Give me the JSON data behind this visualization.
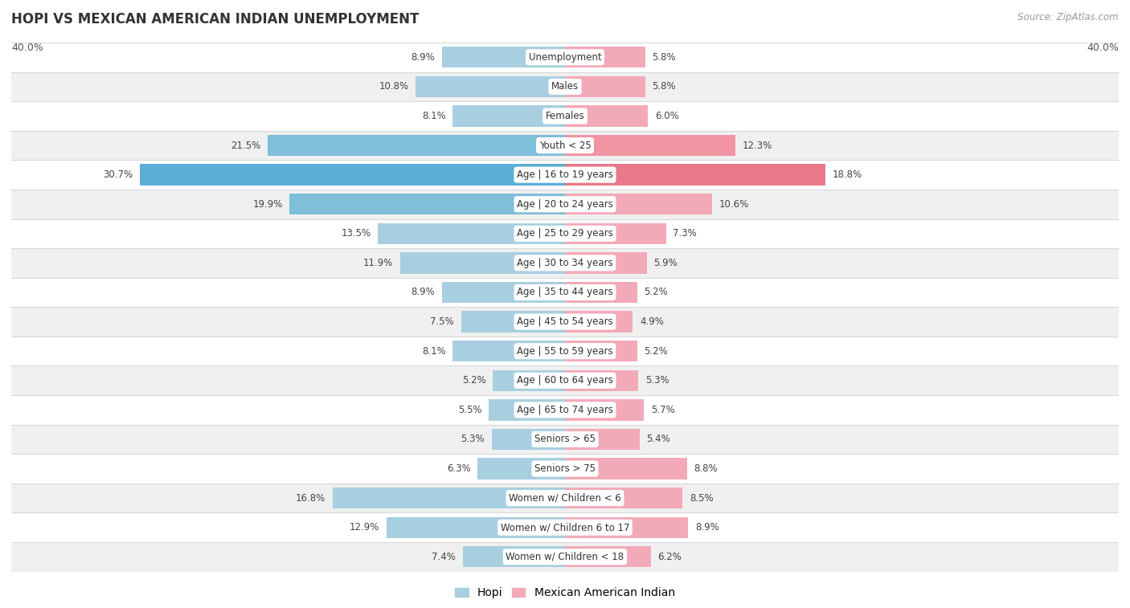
{
  "title": "HOPI VS MEXICAN AMERICAN INDIAN UNEMPLOYMENT",
  "source": "Source: ZipAtlas.com",
  "categories": [
    "Unemployment",
    "Males",
    "Females",
    "Youth < 25",
    "Age | 16 to 19 years",
    "Age | 20 to 24 years",
    "Age | 25 to 29 years",
    "Age | 30 to 34 years",
    "Age | 35 to 44 years",
    "Age | 45 to 54 years",
    "Age | 55 to 59 years",
    "Age | 60 to 64 years",
    "Age | 65 to 74 years",
    "Seniors > 65",
    "Seniors > 75",
    "Women w/ Children < 6",
    "Women w/ Children 6 to 17",
    "Women w/ Children < 18"
  ],
  "hopi_values": [
    8.9,
    10.8,
    8.1,
    21.5,
    30.7,
    19.9,
    13.5,
    11.9,
    8.9,
    7.5,
    8.1,
    5.2,
    5.5,
    5.3,
    6.3,
    16.8,
    12.9,
    7.4
  ],
  "mexican_values": [
    5.8,
    5.8,
    6.0,
    12.3,
    18.8,
    10.6,
    7.3,
    5.9,
    5.2,
    4.9,
    5.2,
    5.3,
    5.7,
    5.4,
    8.8,
    8.5,
    8.9,
    6.2
  ],
  "hopi_color": "#a8cfe0",
  "mexican_color": "#f2aab8",
  "hopi_highlight_color": "#5bafd6",
  "mexican_highlight_color": "#e8788a",
  "hopi_medium_color": "#7fbfda",
  "mexican_medium_color": "#f094a4",
  "axis_max": 40.0,
  "bg_color": "#ffffff",
  "row_color_light": "#ffffff",
  "row_color_dark": "#f0f0f0",
  "sep_color": "#d8d8d8",
  "legend_hopi": "Hopi",
  "legend_mexican": "Mexican American Indian"
}
